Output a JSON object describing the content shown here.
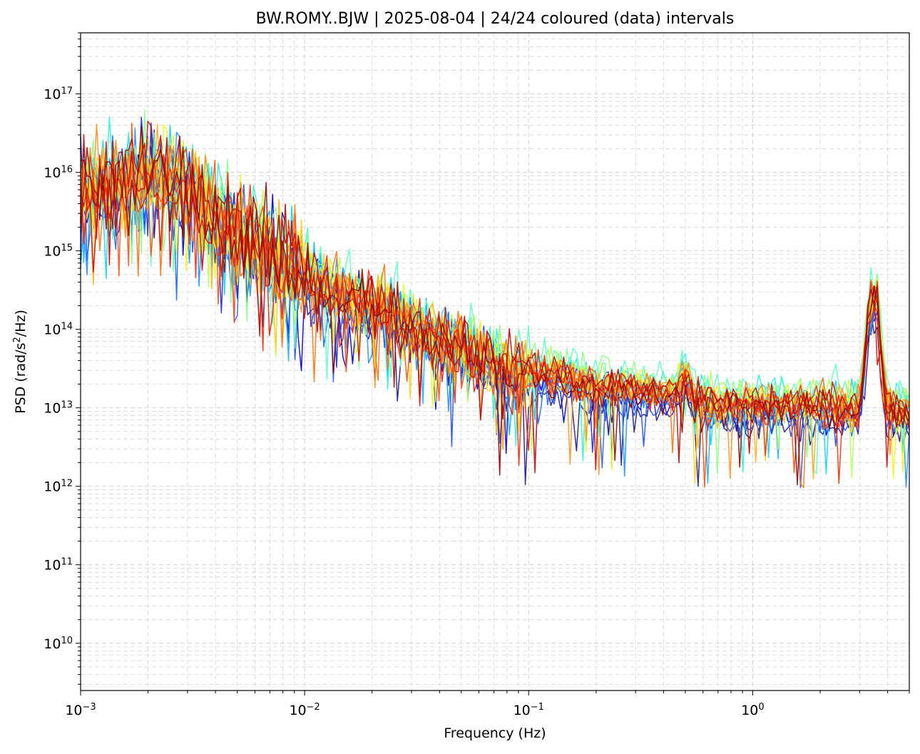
{
  "chart_data": {
    "type": "line",
    "title": "BW.ROMY..BJW | 2025-08-04 | 24/24 coloured (data) intervals",
    "xlabel": "Frequency (Hz)",
    "ylabel_main": "PSD (rad/s",
    "ylabel_sup": "2",
    "ylabel_tail": "/Hz)",
    "x_scale": "log",
    "y_scale": "log",
    "xlim": [
      0.001,
      5
    ],
    "ylim": [
      2500000000.0,
      6e+17
    ],
    "grid": true,
    "legend": "none",
    "colormap": "jet",
    "x_ticks": [
      {
        "value": 0.001,
        "base": "10",
        "exp": "−3"
      },
      {
        "value": 0.01,
        "base": "10",
        "exp": "−2"
      },
      {
        "value": 0.1,
        "base": "10",
        "exp": "−1"
      },
      {
        "value": 1,
        "base": "10",
        "exp": "0"
      }
    ],
    "y_ticks": [
      {
        "value": 10000000000.0,
        "base": "10",
        "exp": "10"
      },
      {
        "value": 100000000000.0,
        "base": "10",
        "exp": "11"
      },
      {
        "value": 1000000000000.0,
        "base": "10",
        "exp": "12"
      },
      {
        "value": 10000000000000.0,
        "base": "10",
        "exp": "13"
      },
      {
        "value": 100000000000000.0,
        "base": "10",
        "exp": "14"
      },
      {
        "value": 1000000000000000.0,
        "base": "10",
        "exp": "15"
      },
      {
        "value": 1e+16,
        "base": "10",
        "exp": "16"
      },
      {
        "value": 1e+17,
        "base": "10",
        "exp": "17"
      }
    ],
    "n_series": 24,
    "spectrum_template": {
      "x": [
        0.001,
        0.0015,
        0.002,
        0.003,
        0.004,
        0.006,
        0.008,
        0.01,
        0.015,
        0.02,
        0.03,
        0.05,
        0.07,
        0.1,
        0.15,
        0.2,
        0.3,
        0.45,
        0.5,
        0.55,
        0.7,
        1.0,
        1.3,
        1.8,
        2.5,
        3.0,
        3.3,
        3.6,
        3.9,
        4.3,
        5.0
      ],
      "y": [
        6000000000000000.0,
        8000000000000000.0,
        1e+16,
        7000000000000000.0,
        3000000000000000.0,
        1500000000000000.0,
        800000000000000.0,
        500000000000000.0,
        300000000000000.0,
        200000000000000.0,
        120000000000000.0,
        60000000000000.0,
        40000000000000.0,
        30000000000000.0,
        25000000000000.0,
        20000000000000.0,
        18000000000000.0,
        15000000000000.0,
        30000000000000.0,
        13000000000000.0,
        12000000000000.0,
        11000000000000.0,
        11000000000000.0,
        11000000000000.0,
        11000000000000.0,
        11000000000000.0,
        200000000000000.0,
        300000000000000.0,
        12000000000000.0,
        10000000000000.0,
        9000000000000.0
      ]
    },
    "series_levels": [
      0.55,
      0.7,
      0.8,
      0.6,
      0.75,
      0.85,
      0.95,
      1.1,
      1.3,
      1.5,
      1.4,
      1.2,
      1.1,
      1.0,
      0.9,
      0.95,
      1.05,
      1.0,
      0.9,
      1.0,
      0.85,
      0.95,
      1.1,
      0.8
    ],
    "series_colors": [
      "#1a1a8c",
      "#0000cd",
      "#1b2be3",
      "#1f4fe8",
      "#1e6af2",
      "#1f90ff",
      "#14b2ff",
      "#10d5f5",
      "#2ef0e0",
      "#5fffc0",
      "#8cff8c",
      "#b8ff5a",
      "#dcff2e",
      "#f5f01a",
      "#ffd01a",
      "#ffb01a",
      "#ff9020",
      "#ff7010",
      "#ff5010",
      "#f03010",
      "#e01e10",
      "#c81008",
      "#b00a06",
      "#8a0a04"
    ]
  }
}
